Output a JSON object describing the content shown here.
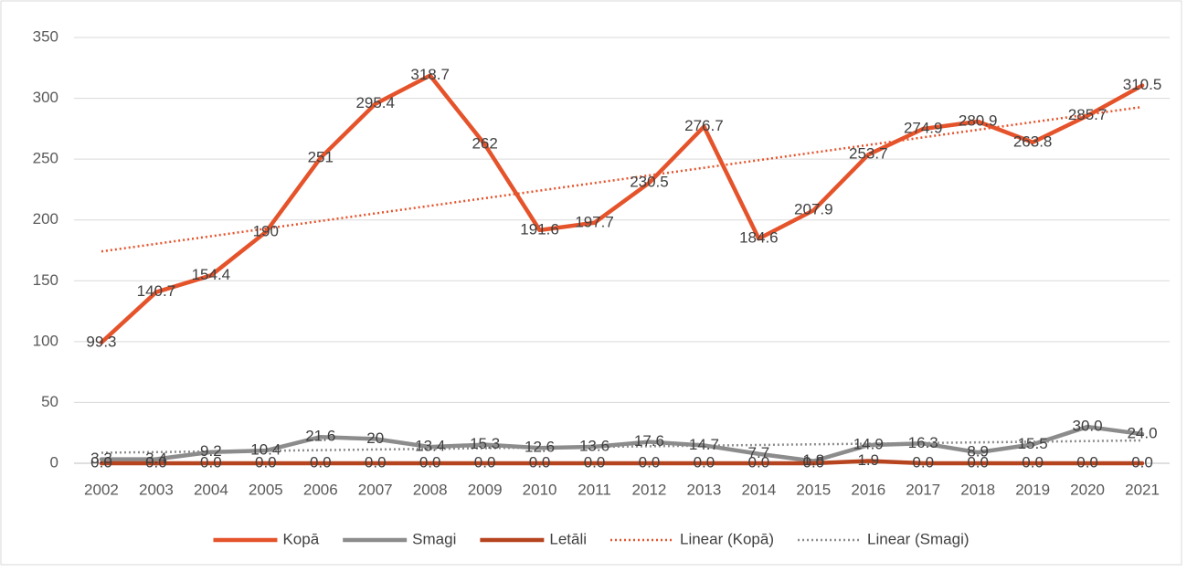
{
  "chart_data": {
    "type": "line",
    "categories": [
      "2002",
      "2003",
      "2004",
      "2005",
      "2006",
      "2007",
      "2008",
      "2009",
      "2010",
      "2011",
      "2012",
      "2013",
      "2014",
      "2015",
      "2016",
      "2017",
      "2018",
      "2019",
      "2020",
      "2021"
    ],
    "series": [
      {
        "name": "Kopā",
        "color": "#e5532b",
        "values": [
          99.3,
          140.7,
          154.4,
          190,
          251,
          295.4,
          318.7,
          262,
          191.6,
          197.7,
          230.5,
          276.7,
          184.6,
          207.9,
          253.7,
          274.9,
          280.9,
          263.8,
          285.7,
          310.5
        ],
        "trendline": {
          "name": "Linear (Kopā)",
          "color": "#e5532b"
        }
      },
      {
        "name": "Smagi",
        "color": "#8c8c8c",
        "values": [
          3.3,
          3.4,
          9.2,
          10.4,
          21.6,
          20,
          13.4,
          15.3,
          12.6,
          13.6,
          17.6,
          14.7,
          7.7,
          1.8,
          14.9,
          16.3,
          8.9,
          15.5,
          30,
          24
        ],
        "value_labels": [
          "3.3",
          "3.4",
          "9.2",
          "10.4",
          "21.6",
          "20",
          "13.4",
          "15.3",
          "12.6",
          "13.6",
          "17.6",
          "14.7",
          "7.7",
          "1.8",
          "14.9",
          "16.3",
          "8.9",
          "15.5",
          "30.0",
          "24.0"
        ],
        "trendline": {
          "name": "Linear (Smagi)",
          "color": "#8c8c8c"
        }
      },
      {
        "name": "Letāli",
        "color": "#b5441f",
        "values": [
          0,
          0,
          0,
          0,
          0,
          0,
          0,
          0,
          0,
          0,
          0,
          0,
          0,
          0,
          1.9,
          0,
          0,
          0,
          0,
          0
        ],
        "value_labels": [
          "0.0",
          "0.0",
          "0.0",
          "0.0",
          "0.0",
          "0.0",
          "0.0",
          "0.0",
          "0.0",
          "0.0",
          "0.0",
          "0.0",
          "0.0",
          "0.0",
          "1.9",
          "0.0",
          "0.0",
          "0.0",
          "0.0",
          "0.0"
        ]
      }
    ],
    "ylim": [
      0,
      350
    ],
    "yticks": [
      0,
      50,
      100,
      150,
      200,
      250,
      300,
      350
    ],
    "grid": true,
    "legend": "bottom"
  }
}
